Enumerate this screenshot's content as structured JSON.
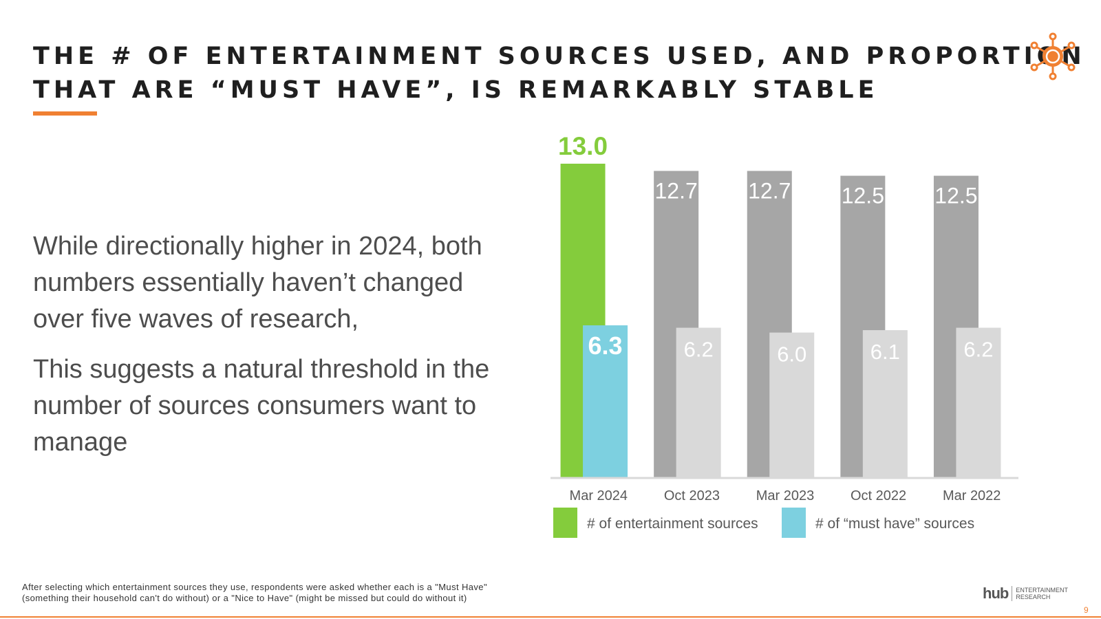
{
  "slide": {
    "title_lines": [
      "THE # OF ENTERTAINMENT SOURCES USED, AND PROPORTION",
      "THAT ARE “MUST HAVE”, IS REMARKABLY STABLE"
    ],
    "paragraphs": [
      "While directionally higher in 2024, both numbers essentially haven’t changed over five waves of research,",
      "This suggests a natural threshold in the number of sources consumers want to manage"
    ],
    "footnote_lines": [
      "After selecting which entertainment sources they use, respondents were asked whether each is a \"Must Have\"",
      "(something their household can't do without) or a \"Nice to Have\" (might be missed but could do without it)"
    ],
    "brand": {
      "name": "hub",
      "sub_line1": "ENTERTAINMENT",
      "sub_line2": "RESEARCH"
    },
    "page_number": "9",
    "colors": {
      "accent": "#f08032"
    },
    "icons": {
      "corner": "sun-network-icon"
    }
  },
  "chart_data": {
    "type": "bar",
    "categories": [
      "Mar 2024",
      "Oct 2023",
      "Mar 2023",
      "Oct 2022",
      "Mar 2022"
    ],
    "series": [
      {
        "name": "# of entertainment sources",
        "values": [
          13.0,
          12.7,
          12.7,
          12.5,
          12.5
        ],
        "labels": [
          "13.0",
          "12.7",
          "12.7",
          "12.5",
          "12.5"
        ],
        "highlight_color": "#84cc3c",
        "color": "#a6a6a6"
      },
      {
        "name": "# of “must have” sources",
        "values": [
          6.3,
          6.2,
          6.0,
          6.1,
          6.2
        ],
        "labels": [
          "6.3",
          "6.2",
          "6.0",
          "6.1",
          "6.2"
        ],
        "highlight_color": "#7dd0e0",
        "color": "#d9d9d9"
      }
    ],
    "highlight_category": "Mar 2024",
    "ylim": [
      0,
      13.0
    ],
    "grid": false,
    "legend": "bottom",
    "title": "",
    "xlabel": "",
    "ylabel": ""
  }
}
